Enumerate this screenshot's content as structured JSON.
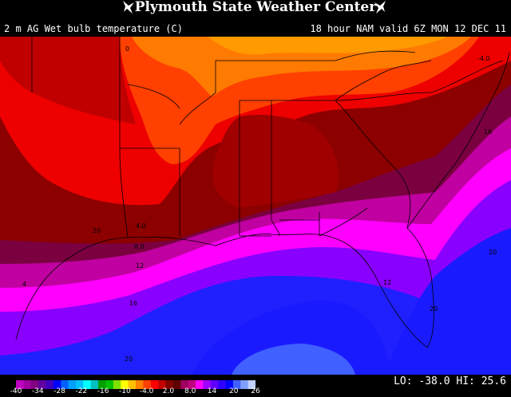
{
  "header": {
    "title": "Plymouth State Weather Center",
    "variable": "2 m AG Wet bulb temperature (C)",
    "valid": "18 hour NAM valid 6Z MON 12 DEC 11"
  },
  "map": {
    "contour_labels": [
      "0",
      "-4.0",
      "4.0",
      "8.0",
      "12",
      "16",
      "16",
      "20",
      "20",
      "20",
      "4",
      "12",
      "20"
    ]
  },
  "colorbar": {
    "ticks": [
      "-40",
      "-34",
      "-28",
      "-22",
      "-16",
      "-10",
      "-4.0",
      "2.0",
      "8.0",
      "14",
      "20",
      "26"
    ],
    "colors": [
      "#c000c0",
      "#a000a0",
      "#800080",
      "#6000a0",
      "#4000c0",
      "#0000ff",
      "#0060ff",
      "#00a0ff",
      "#00c0ff",
      "#00ffff",
      "#00c0c0",
      "#00a000",
      "#00c000",
      "#80e000",
      "#ffff00",
      "#ffc000",
      "#ff8000",
      "#ff4000",
      "#ff0000",
      "#c00000",
      "#800000",
      "#600000",
      "#a00060",
      "#c00080",
      "#ff00ff",
      "#a000ff",
      "#6000ff",
      "#3000ff",
      "#0000ff",
      "#4060ff",
      "#80a0ff",
      "#c0d0ff"
    ]
  },
  "stats": {
    "lo_label": "LO:",
    "lo": "-38.0",
    "hi_label": "HI:",
    "hi": "25.6"
  },
  "style": {
    "ocean_deep": "#1a1aff",
    "warm_red": "#ee0000",
    "dark_red": "#8c0000",
    "orange": "#ff7a00",
    "magenta": "#ff00ff",
    "purple": "#8a00ff"
  }
}
